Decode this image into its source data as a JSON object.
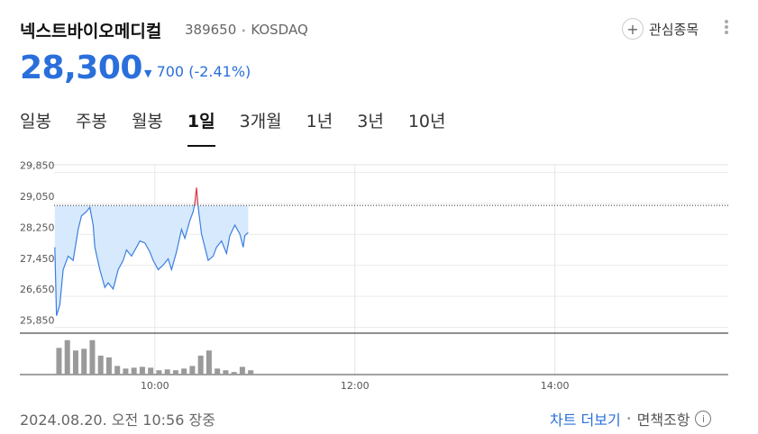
{
  "header": {
    "name": "넥스트바이오메디컬",
    "code": "389650",
    "separator": "•",
    "market": "KOSDAQ",
    "watch_button": "관심종목",
    "price": "28,300",
    "change": "700",
    "change_percent": "(-2.41%)"
  },
  "tabs": [
    "일봉",
    "주봉",
    "월봉",
    "1일",
    "3개월",
    "1년",
    "3년",
    "10년"
  ],
  "active_tab": 3,
  "chart_data": {
    "type": "line",
    "x": [
      "09:00",
      "09:01",
      "09:03",
      "09:05",
      "09:08",
      "09:11",
      "09:14",
      "09:16",
      "09:19",
      "09:21",
      "09:23",
      "09:24",
      "09:27",
      "09:30",
      "09:32",
      "09:35",
      "09:38",
      "09:41",
      "09:43",
      "09:46",
      "09:49",
      "09:51",
      "09:54",
      "09:57",
      "09:59",
      "10:02",
      "10:05",
      "10:08",
      "10:10",
      "10:13",
      "10:16",
      "10:18",
      "10:21",
      "10:23",
      "10:24",
      "10:25",
      "10:26",
      "10:28",
      "10:30",
      "10:32",
      "10:35",
      "10:37",
      "10:40",
      "10:43",
      "10:45",
      "10:48",
      "10:51",
      "10:53",
      "10:54",
      "10:56"
    ],
    "values": [
      27920,
      26150,
      26430,
      27340,
      27690,
      27580,
      28380,
      28730,
      28840,
      28950,
      28490,
      27920,
      27340,
      26880,
      27000,
      26840,
      27340,
      27580,
      27850,
      27690,
      27920,
      28080,
      28030,
      27800,
      27580,
      27340,
      27460,
      27620,
      27340,
      27800,
      28380,
      28150,
      28610,
      28840,
      29070,
      29460,
      28950,
      28260,
      27920,
      27580,
      27690,
      27920,
      28080,
      27760,
      28220,
      28490,
      28260,
      27920,
      28220,
      28300
    ],
    "color": "#3c7fe0",
    "up_color": "#e0393e",
    "area_color": "#d7e9fc",
    "previous_close": 29000,
    "xlim": [
      "08:39",
      "15:44"
    ],
    "ylim": [
      25700,
      30050
    ],
    "yticks": [
      {
        "value": 29850,
        "label": "29,850"
      },
      {
        "value": 29050,
        "label": "29,050"
      },
      {
        "value": 28250,
        "label": "28,250"
      },
      {
        "value": 27450,
        "label": "27,450"
      },
      {
        "value": 26650,
        "label": "26,650"
      },
      {
        "value": 25850,
        "label": "25,850"
      }
    ],
    "xticks": [
      "10:00",
      "12:00",
      "14:00"
    ],
    "grid": true,
    "volume": {
      "x": [
        "09:00",
        "09:05",
        "09:10",
        "09:15",
        "09:20",
        "09:25",
        "09:30",
        "09:35",
        "09:40",
        "09:45",
        "09:50",
        "09:55",
        "10:00",
        "10:05",
        "10:10",
        "10:15",
        "10:20",
        "10:25",
        "10:30",
        "10:35",
        "10:40",
        "10:45",
        "10:50",
        "10:55"
      ],
      "values": [
        31,
        40,
        28,
        30,
        40,
        22,
        20,
        10,
        7,
        8,
        9,
        8,
        5,
        6,
        5,
        7,
        10,
        22,
        28,
        7,
        5,
        3,
        9,
        5
      ],
      "ylim": [
        0,
        45
      ],
      "color": "#9a9a9a"
    }
  },
  "footer": {
    "timestamp": "2024.08.20. 오전 10:56 장중",
    "more": "차트 더보기",
    "separator": "•",
    "disclaimer": "면책조항"
  }
}
